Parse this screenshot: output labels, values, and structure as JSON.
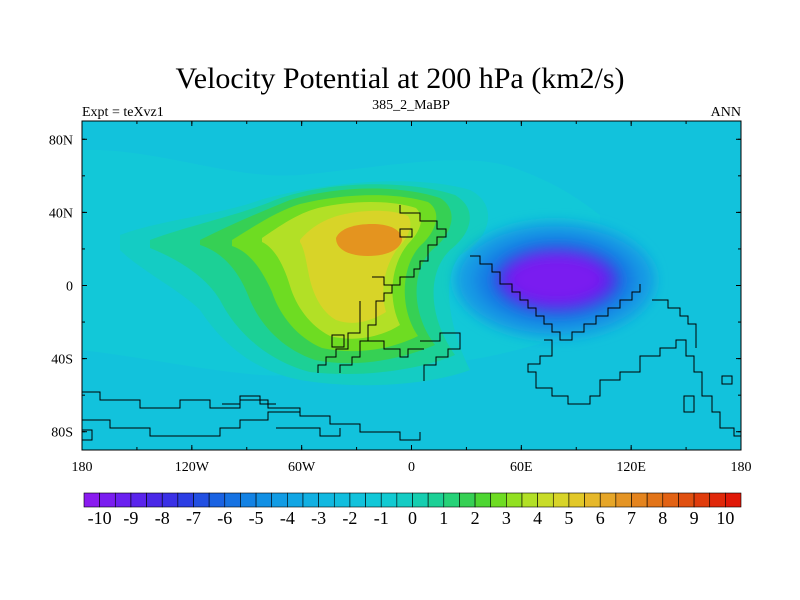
{
  "chart_data": {
    "type": "contour-map",
    "title": "Velocity Potential at 200 hPa (km2/s)",
    "left_label": "Expt = teXvz1",
    "center_label": "385_2_MaBP",
    "right_label": "ANN",
    "x_range": [
      -180,
      180
    ],
    "y_range": [
      -90,
      90
    ],
    "x_ticks": [
      {
        "value": -180,
        "label": "180"
      },
      {
        "value": -120,
        "label": "120W"
      },
      {
        "value": -60,
        "label": "60W"
      },
      {
        "value": 0,
        "label": "0"
      },
      {
        "value": 60,
        "label": "60E"
      },
      {
        "value": 120,
        "label": "120E"
      },
      {
        "value": 180,
        "label": "180"
      }
    ],
    "y_ticks": [
      {
        "value": 80,
        "label": "80N"
      },
      {
        "value": 40,
        "label": "40N"
      },
      {
        "value": 0,
        "label": "0"
      },
      {
        "value": -40,
        "label": "40S"
      },
      {
        "value": -80,
        "label": "80S"
      }
    ],
    "colorbar": {
      "min": -10.5,
      "max": 10.5,
      "step": 0.5,
      "tick_labels": [
        "-10",
        "-9",
        "-8",
        "-7",
        "-6",
        "-5",
        "-4",
        "-3",
        "-2",
        "-1",
        "0",
        "1",
        "2",
        "3",
        "4",
        "5",
        "6",
        "7",
        "8",
        "9",
        "10"
      ],
      "colors": [
        "#8a1bf0",
        "#7a1df0",
        "#6a20f0",
        "#5a24ec",
        "#4a28e8",
        "#3a30e6",
        "#2c3ee4",
        "#2250e2",
        "#1a62e2",
        "#1672e2",
        "#1382e4",
        "#1290e4",
        "#129ce4",
        "#12a6e4",
        "#12b0e2",
        "#12b8e0",
        "#12bede",
        "#12c2dc",
        "#12c8d8",
        "#12cad2",
        "#14ccc4",
        "#16ceb0",
        "#1cd096",
        "#26d278",
        "#36d054",
        "#4ed632",
        "#6edc22",
        "#92e022",
        "#b2e026",
        "#c8dc28",
        "#d8d428",
        "#e2c828",
        "#e6b82a",
        "#e6a628",
        "#e49424",
        "#e4841e",
        "#e27418",
        "#e26214",
        "#e05010",
        "#e03c0c",
        "#e0280a",
        "#e01808"
      ]
    },
    "field_features": [
      {
        "name": "divergent center",
        "lon": 80,
        "lat": 5,
        "value": -10
      },
      {
        "name": "convergent maximum",
        "lon": -15,
        "lat": 25,
        "value": 5.5
      },
      {
        "name": "convergent ridge",
        "lon": -35,
        "lat": -25,
        "value": 4.5
      },
      {
        "name": "weak high",
        "lon": -160,
        "lat": 20,
        "value": 0.5
      }
    ]
  }
}
